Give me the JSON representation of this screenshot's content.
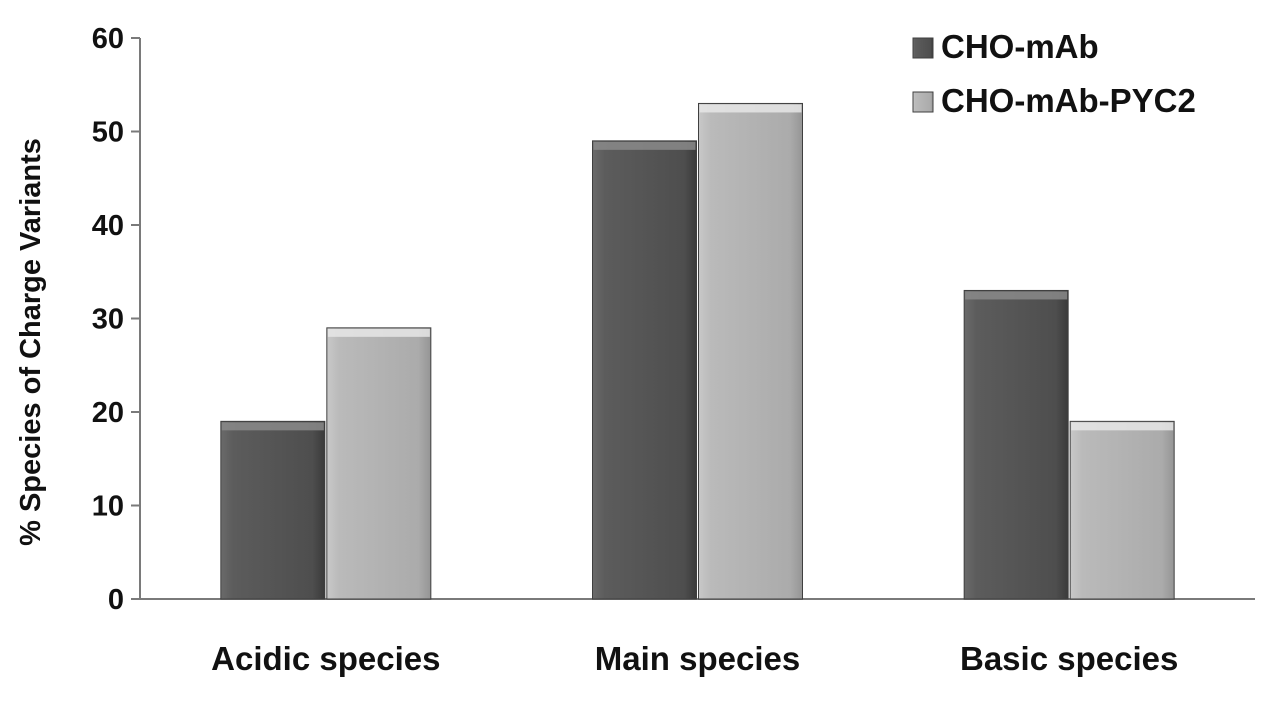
{
  "chart_data": {
    "type": "bar",
    "title": "",
    "xlabel": "",
    "ylabel": "% Species of Charge Variants",
    "ylim": [
      0,
      60
    ],
    "yticks": [
      0,
      10,
      20,
      30,
      40,
      50,
      60
    ],
    "categories": [
      "Acidic species",
      "Main species",
      "Basic species"
    ],
    "series": [
      {
        "name": "CHO-mAb",
        "values": [
          19,
          49,
          33
        ],
        "color": "#565656"
      },
      {
        "name": "CHO-mAb-PYC2",
        "values": [
          29,
          53,
          19
        ],
        "color": "#b4b4b4"
      }
    ],
    "legend_position": "top-right",
    "grid": false
  }
}
